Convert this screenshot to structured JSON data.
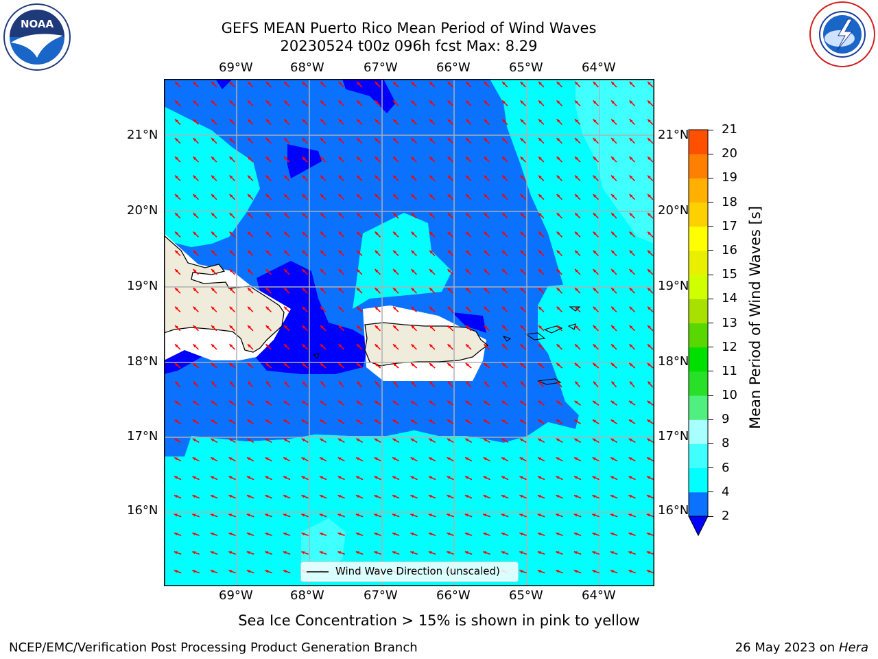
{
  "header": {
    "title_line1": "GEFS MEAN Puerto Rico Mean Period of Wind Waves",
    "title_line2": "20230524 t00z 096h fcst   Max: 8.29"
  },
  "logos": {
    "left": "noaa-logo",
    "right": "nws-logo"
  },
  "map": {
    "lon_labels": [
      "69°W",
      "68°W",
      "67°W",
      "66°W",
      "65°W",
      "64°W"
    ],
    "lat_labels": [
      "21°N",
      "20°N",
      "19°N",
      "18°N",
      "17°N",
      "16°N"
    ],
    "legend_label": "Wind Wave Direction (unscaled)",
    "arrow_color": "#ff0000",
    "land_color": "#efecdc"
  },
  "colorbar": {
    "label": "Mean Period of Wind Waves [s]",
    "ticks": [
      "2",
      "4",
      "6",
      "8",
      "9",
      "10",
      "11",
      "12",
      "13",
      "14",
      "15",
      "16",
      "17",
      "18",
      "19",
      "20",
      "21"
    ],
    "colors": [
      "#0a72ff",
      "#00ffff",
      "#40ffff",
      "#a8ffff",
      "#50f080",
      "#28e028",
      "#00e000",
      "#58d800",
      "#a8e000",
      "#d0ff00",
      "#e8f000",
      "#ffff00",
      "#ffd000",
      "#ffb000",
      "#ff8000",
      "#ff5000",
      "#ff2000",
      "#ff0000"
    ],
    "extend_color": "#0000ff"
  },
  "footer": {
    "sea_ice_note": "Sea Ice Concentration > 15% is shown in pink to yellow",
    "producer": "NCEP/EMC/Verification Post Processing Product Generation Branch",
    "date": "26 May 2023 on",
    "machine": "Hera"
  }
}
